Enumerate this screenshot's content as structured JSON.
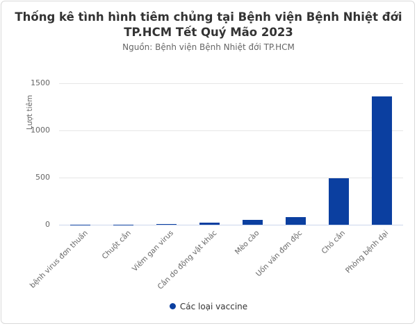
{
  "chart_data": {
    "type": "bar",
    "title": "Thống kê tình hình tiêm chủng tại Bệnh viện Bệnh Nhiệt đới TP.HCM Tết Quý Mão 2023",
    "title_lines": [
      "Thống kê tình hình tiêm chủng tại Bệnh viện Bệnh Nhiệt đới",
      "TP.HCM Tết Quý Mão 2023"
    ],
    "subtitle": "Nguồn: Bệnh viện Bệnh Nhiệt đới TP.HCM",
    "xlabel": "",
    "ylabel": "Lượt tiêm",
    "ylim": [
      0,
      1500
    ],
    "yticks": [
      "0",
      "500",
      "1000",
      "1500"
    ],
    "grid": true,
    "legend_position": "bottom",
    "categories": [
      "bệnh virus đơn thuần",
      "Chuột cắn",
      "Viêm gan virus",
      "Cắn do động vật khác",
      "Mèo cào",
      "Uốn ván đơn độc",
      "Chó cắn",
      "Phòng bệnh dại"
    ],
    "series": [
      {
        "name": "Các loại vaccine",
        "color": "#0b3fa0",
        "values": [
          1,
          1,
          10,
          20,
          50,
          80,
          490,
          1360
        ]
      }
    ]
  }
}
